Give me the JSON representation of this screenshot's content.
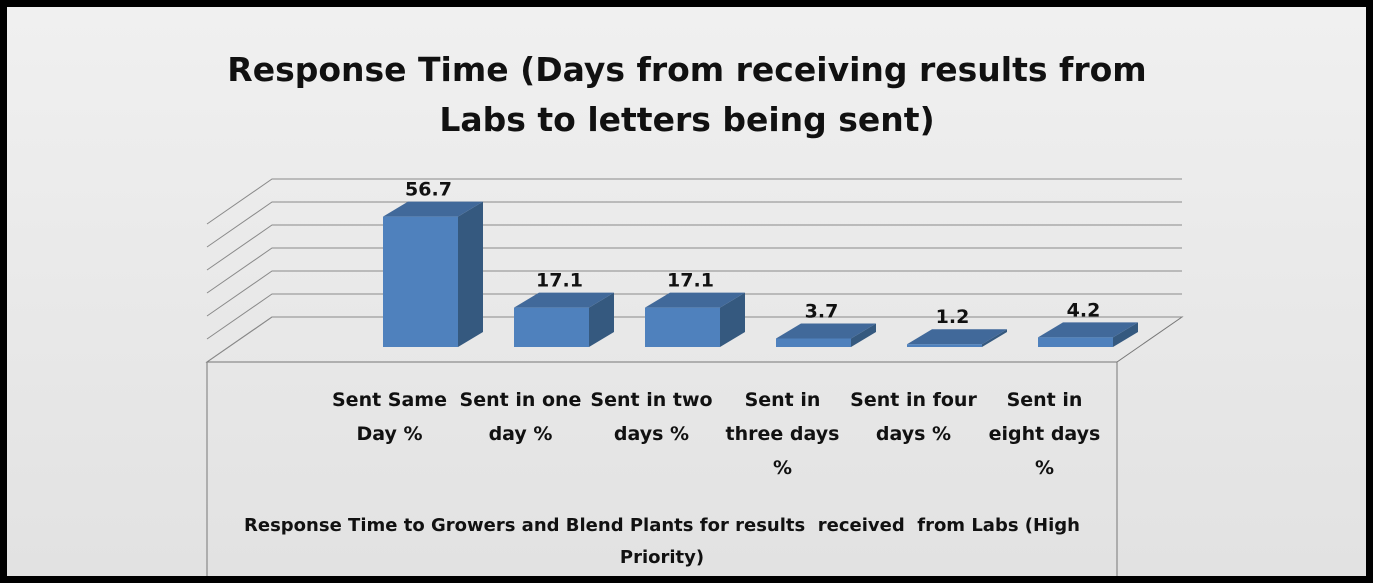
{
  "chart_data": {
    "type": "bar3d",
    "title": "Response Time (Days from receiving results from Labs to letters being sent)",
    "x_label": "Response Time to Growers and Blend Plants for results  received  from Labs (High Priority)",
    "categories": [
      "Sent Same Day %",
      "Sent in one day %",
      "Sent in two days %",
      "Sent in three days %",
      "Sent in four days %",
      "Sent in eight days %"
    ],
    "values": [
      56.7,
      17.1,
      17.1,
      3.7,
      1.2,
      4.2
    ],
    "color": "#4f81bd",
    "ylim": [
      0,
      60
    ],
    "yticks": [
      0,
      10,
      20,
      30,
      40,
      50,
      60
    ],
    "grid": true
  }
}
